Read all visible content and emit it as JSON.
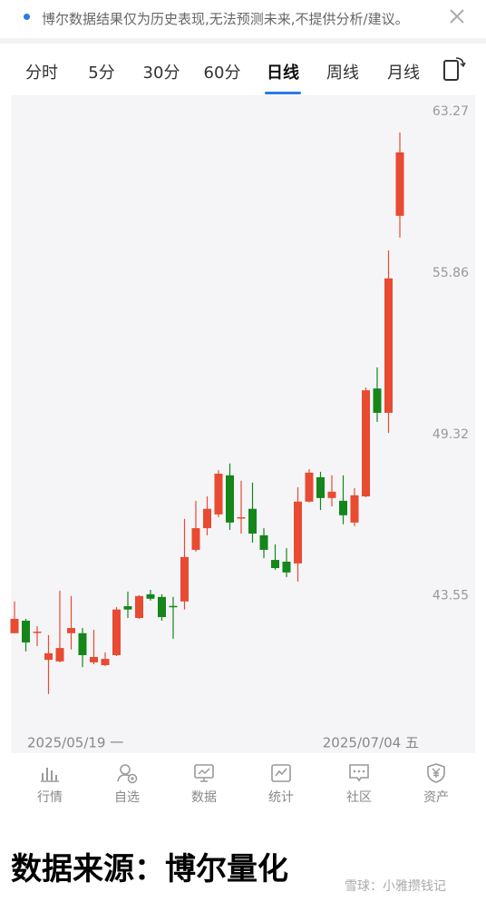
{
  "notice": {
    "text": "博尔数据结果仅为历史表现,无法预测未来,不提供分析/建议。"
  },
  "tabs": [
    "分时",
    "5分",
    "30分",
    "60分",
    "日线",
    "周线",
    "月线"
  ],
  "chart_data": {
    "type": "candlestick",
    "x_labels": [
      "2025/05/19 一",
      "2025/07/04 五"
    ],
    "open": [
      42.31,
      42.72,
      42.34,
      41.45,
      41.4,
      42.31,
      42.31,
      41.37,
      41.28,
      41.6,
      43.2,
      42.81,
      43.6,
      43.51,
      43.21,
      43.36,
      45.12,
      45.88,
      46.37,
      47.79,
      46.25,
      46.57,
      45.63,
      44.77,
      44.71,
      44.65,
      46.83,
      47.72,
      46.96,
      46.86,
      46.08,
      47.02,
      51.1,
      50.15,
      58.38
    ],
    "high": [
      43.36,
      42.78,
      42.54,
      42.25,
      43.72,
      43.54,
      42.48,
      42.42,
      41.69,
      43.17,
      43.69,
      43.57,
      43.75,
      43.6,
      43.51,
      46.21,
      46.86,
      47.02,
      47.98,
      48.23,
      47.59,
      47.52,
      45.88,
      45.31,
      45.18,
      47.35,
      48.02,
      47.92,
      47.79,
      47.79,
      47.32,
      51.14,
      51.94,
      56.84,
      62.26
    ],
    "low": [
      42.31,
      41.72,
      41.89,
      40.37,
      41.37,
      41.78,
      41.22,
      41.31,
      41.25,
      41.57,
      42.81,
      42.78,
      43.39,
      42.72,
      42.13,
      43.09,
      45.06,
      45.63,
      46.27,
      45.82,
      45.69,
      45.37,
      44.83,
      44.43,
      44.18,
      44.03,
      46.8,
      46.53,
      46.66,
      46.02,
      45.95,
      46.99,
      49.8,
      49.38,
      57.41
    ],
    "close": [
      42.78,
      42.01,
      42.36,
      41.66,
      41.83,
      42.48,
      41.6,
      41.54,
      41.48,
      43.09,
      43.09,
      43.54,
      43.45,
      42.84,
      43.2,
      44.87,
      45.88,
      46.57,
      47.85,
      46.08,
      46.27,
      45.69,
      45.12,
      44.49,
      44.34,
      46.83,
      47.89,
      46.96,
      47.19,
      46.34,
      47.06,
      51.03,
      50.15,
      55.63,
      61.31
    ],
    "ylim": [
      38.57,
      64.07
    ],
    "yticks": [
      63.27,
      55.86,
      49.32,
      43.55
    ],
    "log_scale": true,
    "up_color": "#e84a32",
    "down_color": "#14861a"
  },
  "nav": [
    "行情",
    "自选",
    "数据",
    "统计",
    "社区",
    "资产"
  ],
  "footer": {
    "source": "数据来源：博尔量化",
    "watermark": "雪球：小雅攒钱记"
  }
}
